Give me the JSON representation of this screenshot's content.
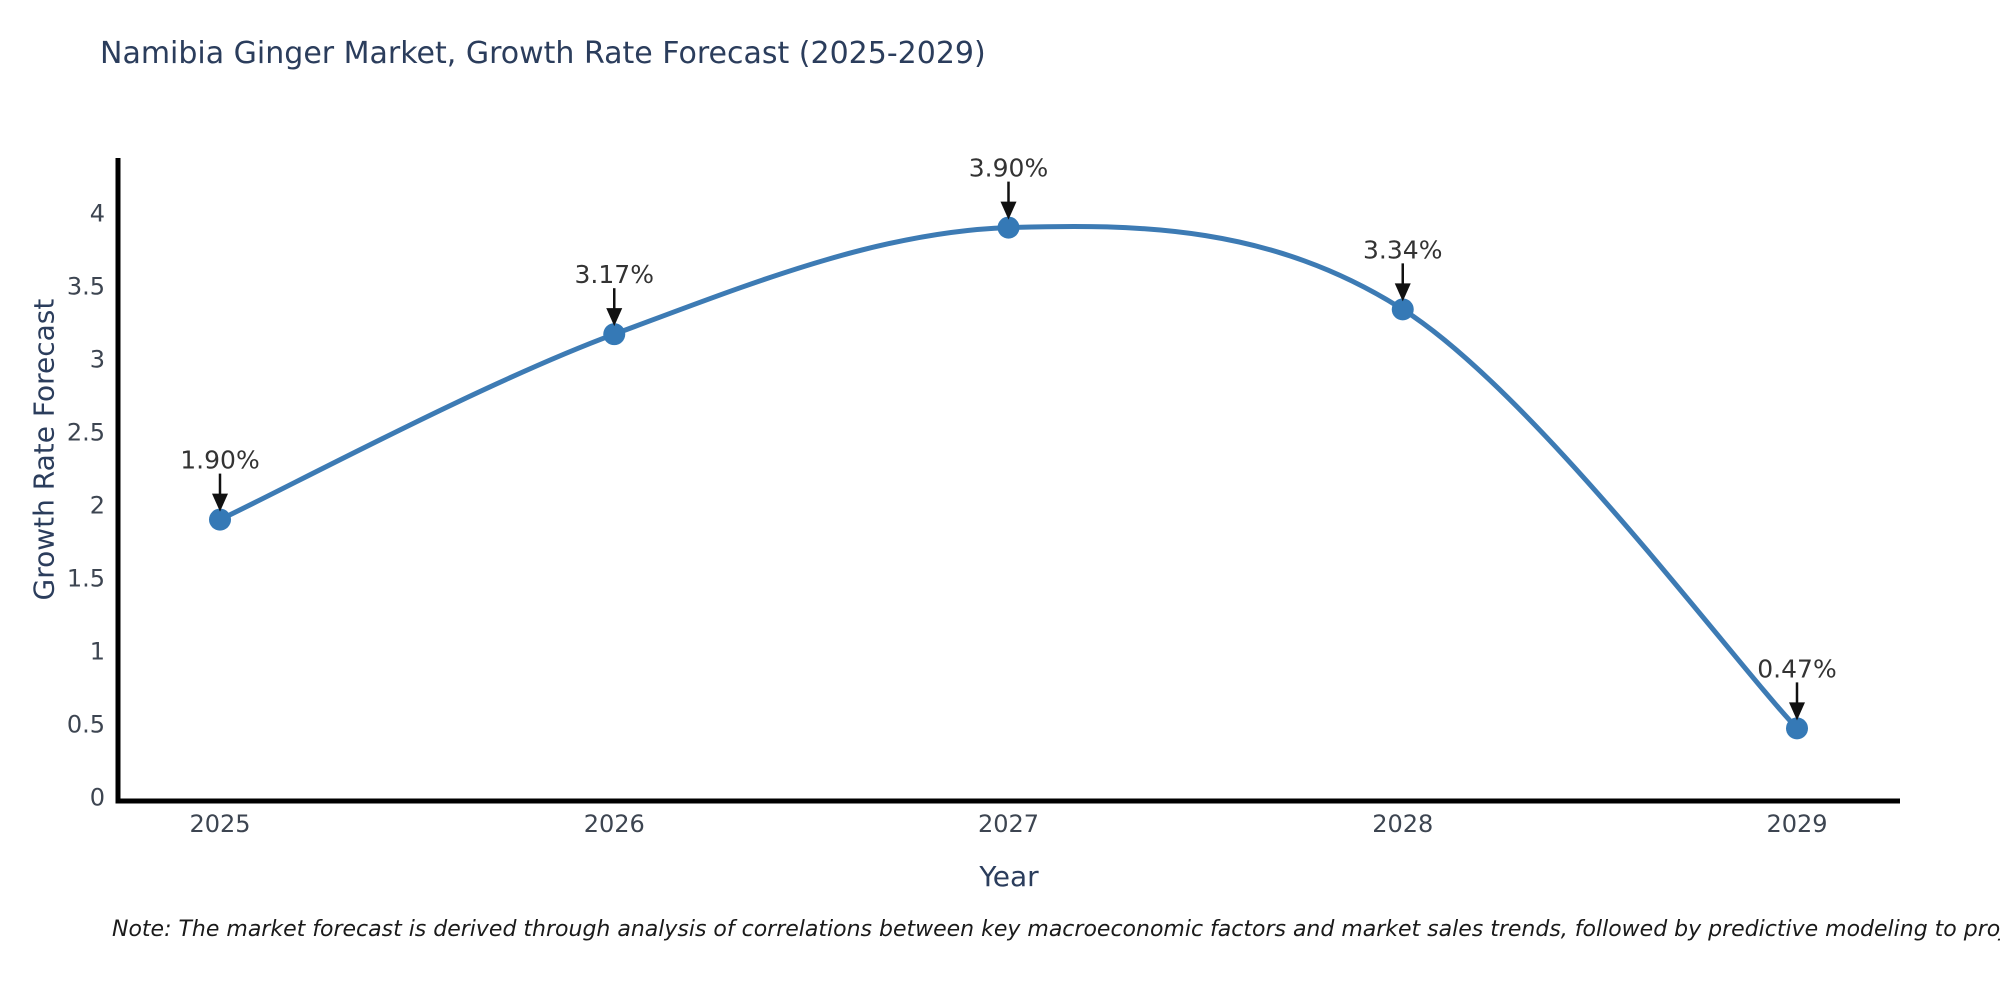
{
  "figure": {
    "note": "Note: The market forecast is derived through analysis of correlations between key macroeconomic factors and market sales trends, followed by predictive modeling to project future sales"
  },
  "chart_data": {
    "type": "line",
    "title": "Namibia Ginger Market, Growth Rate Forecast (2025-2029)",
    "xlabel": "Year",
    "ylabel": "Growth Rate Forecast",
    "x": [
      2025,
      2026,
      2027,
      2028,
      2029
    ],
    "x_tick_labels": [
      "2025",
      "2026",
      "2027",
      "2028",
      "2029"
    ],
    "series": [
      {
        "name": "Growth Rate Forecast",
        "values": [
          1.9,
          3.17,
          3.9,
          3.34,
          0.47
        ]
      }
    ],
    "point_labels": [
      "1.90%",
      "3.17%",
      "3.90%",
      "3.34%",
      "0.47%"
    ],
    "ylim": [
      0,
      4.4
    ],
    "y_ticks": [
      0,
      0.5,
      1,
      1.5,
      2,
      2.5,
      3,
      3.5,
      4
    ],
    "y_tick_labels": [
      "0",
      "0.5",
      "1",
      "1.5",
      "2",
      "2.5",
      "3",
      "3.5",
      "4"
    ],
    "grid": false,
    "legend": false,
    "line_shape": "spline",
    "annotation_style": "label-with-down-arrow",
    "colors": {
      "line": "#3d7bb4",
      "marker": "#3579b6",
      "axis": "#000000",
      "annotation_text": "#333333",
      "annotation_arrow": "#111111",
      "title_text": "#2b3d5c",
      "tick_text": "#3d4551"
    }
  }
}
